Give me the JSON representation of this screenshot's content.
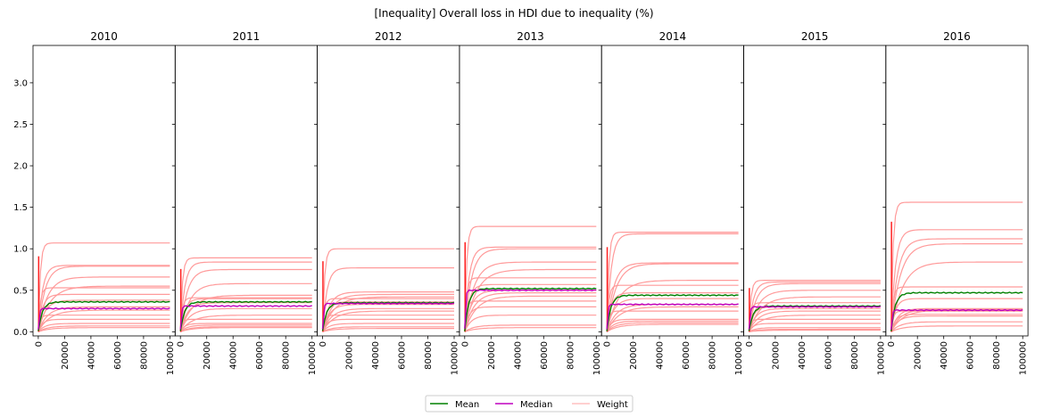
{
  "chart_data": {
    "type": "line",
    "title": "[Inequality] Overall loss in HDI due to inequality (%)",
    "panels": [
      "2010",
      "2011",
      "2012",
      "2013",
      "2014",
      "2015",
      "2016"
    ],
    "xlabel": "",
    "ylabel": "",
    "xlim": [
      -4000,
      104000
    ],
    "ylim": [
      -0.05,
      3.45
    ],
    "x_ticks": [
      0,
      20000,
      40000,
      60000,
      80000,
      100000
    ],
    "y_ticks": [
      "0.0",
      "0.5",
      "1.0",
      "1.5",
      "2.0",
      "2.5",
      "3.0"
    ],
    "legend": {
      "position": "bottom-center",
      "entries": [
        {
          "label": "Mean",
          "color": "#008000"
        },
        {
          "label": "Median",
          "color": "#bf00bf"
        },
        {
          "label": "Weight",
          "color": "#ffc0c0"
        }
      ]
    },
    "series_by_panel": {
      "2010": {
        "mean": 0.36,
        "median": 0.28,
        "weights": [
          1.07,
          0.8,
          0.79,
          0.66,
          0.55,
          0.53,
          0.45,
          0.38,
          0.3,
          0.26,
          0.2,
          0.15,
          0.1,
          0.07,
          0.05
        ]
      },
      "2011": {
        "mean": 0.36,
        "median": 0.31,
        "weights": [
          0.89,
          0.84,
          0.75,
          0.58,
          0.44,
          0.41,
          0.4,
          0.35,
          0.28,
          0.2,
          0.15,
          0.1,
          0.08,
          0.06,
          0.05
        ]
      },
      "2012": {
        "mean": 0.35,
        "median": 0.34,
        "weights": [
          1.0,
          0.77,
          0.48,
          0.45,
          0.42,
          0.4,
          0.36,
          0.33,
          0.28,
          0.25,
          0.2,
          0.15,
          0.1,
          0.06,
          0.04
        ]
      },
      "2013": {
        "mean": 0.52,
        "median": 0.5,
        "weights": [
          1.27,
          1.02,
          1.0,
          0.84,
          0.75,
          0.65,
          0.57,
          0.5,
          0.47,
          0.43,
          0.37,
          0.3,
          0.2,
          0.08,
          0.05
        ]
      },
      "2014": {
        "mean": 0.44,
        "median": 0.33,
        "weights": [
          1.2,
          1.18,
          0.83,
          0.82,
          0.62,
          0.56,
          0.47,
          0.4,
          0.33,
          0.3,
          0.25,
          0.15,
          0.13,
          0.11,
          0.09
        ]
      },
      "2015": {
        "mean": 0.31,
        "median": 0.3,
        "weights": [
          0.62,
          0.6,
          0.58,
          0.5,
          0.42,
          0.35,
          0.3,
          0.28,
          0.25,
          0.2,
          0.15,
          0.1,
          0.05,
          0.03,
          0.02
        ]
      },
      "2016": {
        "mean": 0.47,
        "median": 0.26,
        "weights": [
          1.56,
          1.23,
          1.12,
          1.06,
          0.84,
          0.54,
          0.4,
          0.28,
          0.27,
          0.26,
          0.25,
          0.21,
          0.19,
          0.12,
          0.07
        ]
      }
    }
  }
}
